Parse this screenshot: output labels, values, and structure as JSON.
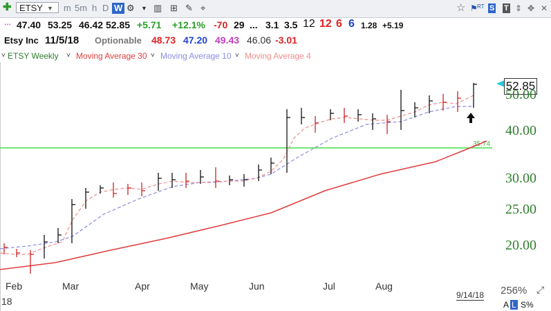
{
  "toolbar": {
    "symbol": "ETSY",
    "intervals": [
      "m",
      "5m",
      "h",
      "D",
      "W"
    ],
    "selected_interval": "W",
    "right_labels": {
      "rt": "RT",
      "s": "S",
      "t": "T"
    }
  },
  "quote_line1": {
    "open": "47.40",
    "high": "53.25",
    "low": "46.42",
    "close": "52.85",
    "change": "+5.71",
    "change_pct": "+12.1%",
    "v1": "-70",
    "v2": "29",
    "v3": "...",
    "v4": "3.1",
    "v5": "3.5",
    "v6": "12",
    "v7": "12",
    "v8": "6",
    "v9": "6",
    "v10": "1.28",
    "v11": "+5.19"
  },
  "quote_line2": {
    "name": "Etsy Inc",
    "date": "11/5/18",
    "optionable": "Optionable",
    "ma30": "48.73",
    "ma10": "47.20",
    "ma4": "49.43",
    "val": "46.06",
    "diff": "-3.01"
  },
  "legend": {
    "series1": "ETSY Weekly",
    "series2": "Moving Average 30",
    "series3": "Moving Average 10",
    "series4": "Moving Average 4"
  },
  "colors": {
    "ma30": "#e03c3c",
    "ma10": "#8a8ae6",
    "ma4": "#f08c8c",
    "hline": "#44dd44",
    "axis_text": "#2f7d2f",
    "up_bar": "#111111",
    "down_bar": "#cc2222"
  },
  "chart_data": {
    "type": "line",
    "title": "ETSY Weekly",
    "y_axis_ticks": [
      "20.00",
      "25.00",
      "30.00",
      "40.00",
      "50.00"
    ],
    "x_axis_labels": [
      "Feb",
      "Mar",
      "Apr",
      "May",
      "Jun",
      "Jul",
      "Aug"
    ],
    "x_axis_extra": "18",
    "date_label": "9/14/18",
    "last_price": "52.85",
    "hline_value": 35.74,
    "hline_label": "35.74",
    "zoom": "256%",
    "footer_buttons": [
      "A",
      "L",
      "S%"
    ]
  }
}
